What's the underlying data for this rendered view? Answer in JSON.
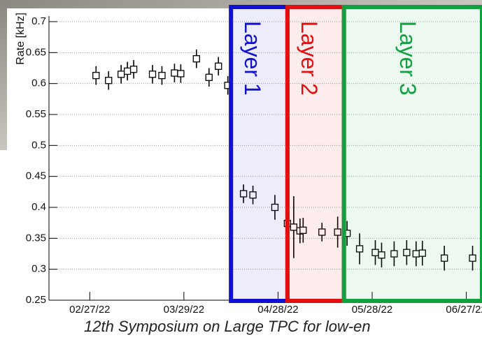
{
  "chart_data": {
    "type": "scatter",
    "y_label": "Rate [kHz]",
    "footer": "12th Symposium on Large TPC for low-en",
    "x": [
      "2022-03-01",
      "2022-03-05",
      "2022-03-09",
      "2022-03-11",
      "2022-03-13",
      "2022-03-19",
      "2022-03-22",
      "2022-03-26",
      "2022-03-28",
      "2022-04-02",
      "2022-04-06",
      "2022-04-09",
      "2022-04-12",
      "2022-04-17",
      "2022-04-20",
      "2022-04-27",
      "2022-05-01",
      "2022-05-03",
      "2022-05-05",
      "2022-05-06",
      "2022-05-12",
      "2022-05-17",
      "2022-05-20",
      "2022-05-24",
      "2022-05-29",
      "2022-05-31",
      "2022-06-04",
      "2022-06-08",
      "2022-06-11",
      "2022-06-13",
      "2022-06-20",
      "2022-06-29"
    ],
    "values": [
      0.613,
      0.605,
      0.615,
      0.62,
      0.623,
      0.615,
      0.613,
      0.617,
      0.616,
      0.64,
      0.61,
      0.628,
      0.597,
      0.422,
      0.42,
      0.4,
      0.374,
      0.368,
      0.362,
      0.363,
      0.36,
      0.36,
      0.358,
      0.333,
      0.327,
      0.323,
      0.325,
      0.327,
      0.325,
      0.326,
      0.318,
      0.318
    ],
    "errors": [
      0.015,
      0.015,
      0.015,
      0.015,
      0.015,
      0.015,
      0.015,
      0.015,
      0.015,
      0.015,
      0.015,
      0.015,
      0.015,
      0.015,
      0.015,
      0.02,
      0.03,
      0.05,
      0.02,
      0.02,
      0.015,
      0.025,
      0.02,
      0.025,
      0.02,
      0.02,
      0.02,
      0.02,
      0.02,
      0.02,
      0.02,
      0.02
    ],
    "color": "#000000",
    "xlim": [
      "2022-02-14",
      "2022-07-02"
    ],
    "xticks": [
      {
        "value": "2022-02-27",
        "label": "02/27/22"
      },
      {
        "value": "2022-03-29",
        "label": "03/29/22"
      },
      {
        "value": "2022-04-28",
        "label": "04/28/22"
      },
      {
        "value": "2022-05-28",
        "label": "05/28/22"
      },
      {
        "value": "2022-06-27",
        "label": "06/27/22"
      }
    ],
    "ylim": [
      0.25,
      0.7
    ],
    "yticks": [
      0.25,
      0.3,
      0.35,
      0.4,
      0.45,
      0.5,
      0.55,
      0.6,
      0.65,
      0.7
    ],
    "grid": true,
    "regions": [
      {
        "label": "Layer 1",
        "color": "#1010d0",
        "start": "2022-04-13",
        "end": "2022-05-01"
      },
      {
        "label": "Layer 2",
        "color": "#e01010",
        "start": "2022-05-01",
        "end": "2022-05-19"
      },
      {
        "label": "Layer 3",
        "color": "#10a040",
        "start": "2022-05-19",
        "end": "2022-07-02"
      }
    ]
  }
}
